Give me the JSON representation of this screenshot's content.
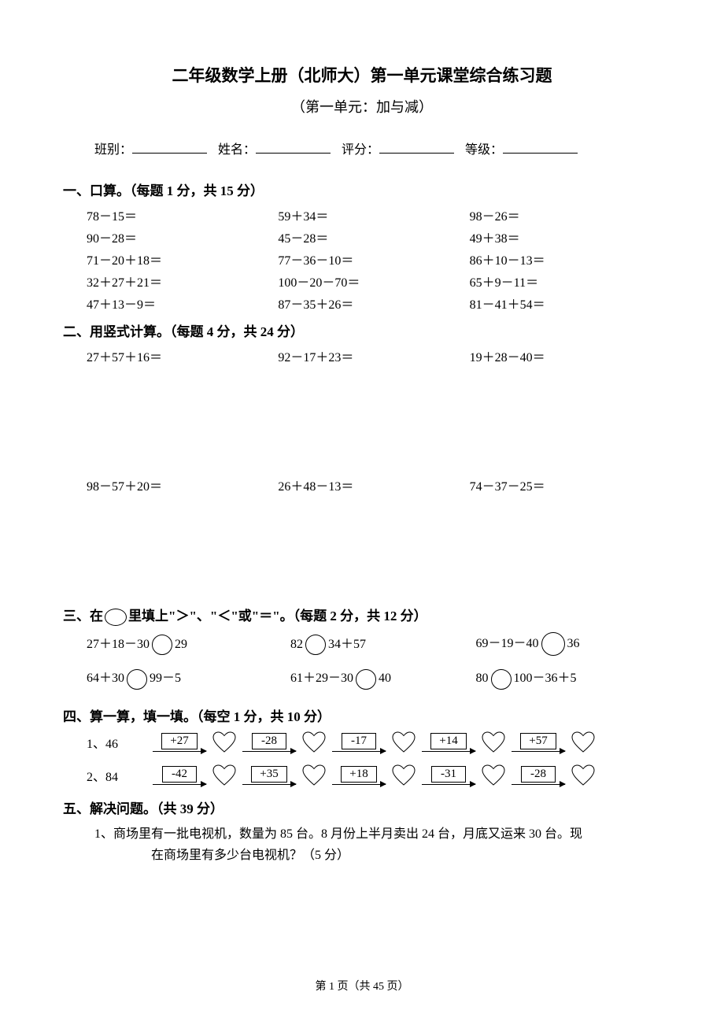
{
  "title": "二年级数学上册（北师大）第一单元课堂综合练习题",
  "subtitle": "（第一单元：加与减）",
  "header_fields": {
    "f1": "班别：",
    "f2": "姓名：",
    "f3": "评分：",
    "f4": "等级："
  },
  "section1": {
    "heading": "一、口算。（每题 1 分，共 15 分）",
    "items": [
      "78－15＝",
      "59＋34＝",
      "98－26＝",
      "90－28＝",
      "45－28＝",
      "49＋38＝",
      "71－20＋18＝",
      "77－36－10＝",
      "86＋10－13＝",
      "32＋27＋21＝",
      "100－20－70＝",
      "65＋9－11＝",
      "47＋13－9＝",
      "87－35＋26＝",
      "81－41＋54＝"
    ]
  },
  "section2": {
    "heading": "二、用竖式计算。（每题 4 分，共 24 分）",
    "items": [
      "27＋57＋16＝",
      "92－17＋23＝",
      "19＋28－40＝",
      "98－57＋20＝",
      "26＋48－13＝",
      "74－37－25＝"
    ]
  },
  "section3": {
    "heading_pre": "三、在",
    "heading_post": "里填上\"＞\"、\"＜\"或\"＝\"。（每题 2 分，共 12 分）",
    "rows": [
      [
        {
          "left": "27＋18－30",
          "right": "29"
        },
        {
          "left": "82",
          "right": "34＋57"
        },
        {
          "left": "69－19－40",
          "right": "36"
        }
      ],
      [
        {
          "left": "64＋30",
          "right": "99－5"
        },
        {
          "left": "61＋29－30",
          "right": "40"
        },
        {
          "left": "80",
          "right": "100－36＋5"
        }
      ]
    ]
  },
  "section4": {
    "heading": "四、算一算，填一填。（每空 1 分，共 10 分）",
    "chains": [
      {
        "label": "1、46",
        "ops": [
          "+27",
          "-28",
          "-17",
          "+14",
          "+57"
        ]
      },
      {
        "label": "2、84",
        "ops": [
          "-42",
          "+35",
          "+18",
          "-31",
          "-28"
        ]
      }
    ]
  },
  "section5": {
    "heading": "五、解决问题。（共 39 分）",
    "q1_line1": "1、商场里有一批电视机，数量为 85 台。8 月份上半月卖出 24 台，月底又运来 30 台。现",
    "q1_line2": "在商场里有多少台电视机？（5 分）"
  },
  "footer": "第 1 页（共 45 页）",
  "style": {
    "page_bg": "#ffffff",
    "text_color": "#000000",
    "border_color": "#000000",
    "heart_stroke": "#000000",
    "heart_fill": "none"
  }
}
